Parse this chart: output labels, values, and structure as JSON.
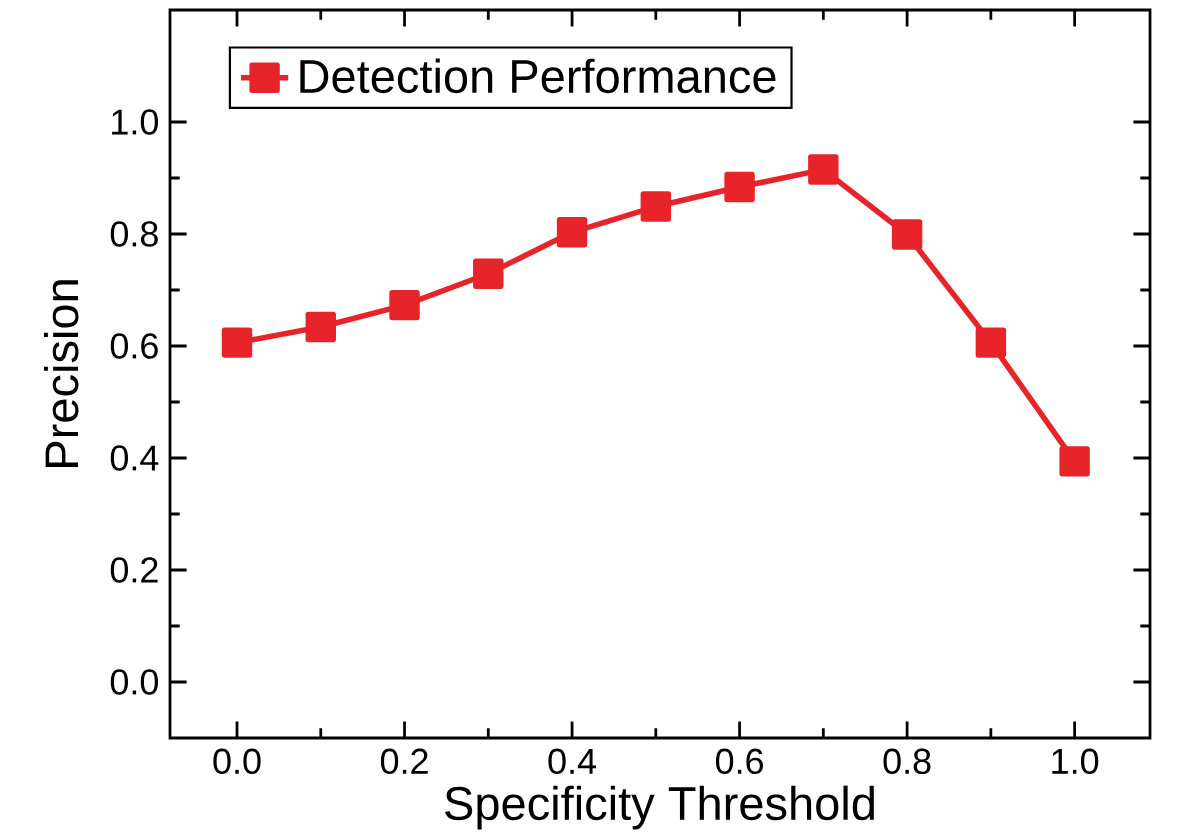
{
  "chart_data": {
    "type": "line",
    "xlabel": "Specificity Threshold",
    "ylabel": "Precision",
    "x": [
      0.0,
      0.1,
      0.2,
      0.3,
      0.4,
      0.5,
      0.6,
      0.7,
      0.8,
      0.9,
      1.0
    ],
    "series": [
      {
        "name": "Detection Performance",
        "color": "#e8242b",
        "values": [
          0.606,
          0.634,
          0.673,
          0.729,
          0.803,
          0.849,
          0.884,
          0.915,
          0.799,
          0.606,
          0.394
        ]
      }
    ],
    "xlim": [
      -0.08,
      1.09
    ],
    "ylim": [
      -0.1,
      1.2
    ],
    "xticks": [
      {
        "value": 0.0,
        "label": "0.0"
      },
      {
        "value": 0.2,
        "label": "0.2"
      },
      {
        "value": 0.4,
        "label": "0.4"
      },
      {
        "value": 0.6,
        "label": "0.6"
      },
      {
        "value": 0.8,
        "label": "0.8"
      },
      {
        "value": 1.0,
        "label": "1.0"
      }
    ],
    "yticks": [
      {
        "value": 0.0,
        "label": "0.0"
      },
      {
        "value": 0.2,
        "label": "0.2"
      },
      {
        "value": 0.4,
        "label": "0.4"
      },
      {
        "value": 0.6,
        "label": "0.6"
      },
      {
        "value": 0.8,
        "label": "0.8"
      },
      {
        "value": 1.0,
        "label": "1.0"
      }
    ],
    "legend": "top left",
    "marker": "square",
    "line_style": "solid",
    "grid": false
  }
}
